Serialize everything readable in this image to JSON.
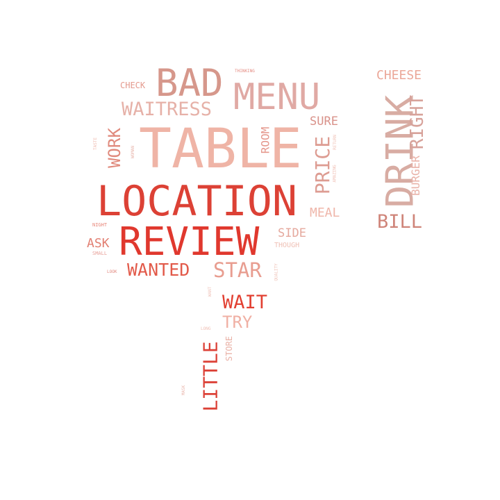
{
  "words": [
    {
      "id": "table",
      "text": "TABLE",
      "color": "#efb4a6"
    },
    {
      "id": "location",
      "text": "LOCATION",
      "color": "#dc4135"
    },
    {
      "id": "review",
      "text": "REVIEW",
      "color": "#e0382e"
    },
    {
      "id": "bad",
      "text": "BAD",
      "color": "#d6978b"
    },
    {
      "id": "menu",
      "text": "MENU",
      "color": "#e0a9a4"
    },
    {
      "id": "drink",
      "text": "DRINK",
      "color": "#d8aca3"
    },
    {
      "id": "right",
      "text": "RIGHT",
      "color": "#d7a29a"
    },
    {
      "id": "waitress",
      "text": "WAITRESS",
      "color": "#e6b1a8"
    },
    {
      "id": "wanted",
      "text": "WANTED",
      "color": "#e25a4a"
    },
    {
      "id": "star",
      "text": "STAR",
      "color": "#e89d90"
    },
    {
      "id": "wait",
      "text": "WAIT",
      "color": "#e24032"
    },
    {
      "id": "try",
      "text": "TRY",
      "color": "#f0b0a4"
    },
    {
      "id": "little",
      "text": "LITTLE",
      "color": "#dc4238"
    },
    {
      "id": "price",
      "text": "PRICE",
      "color": "#dd9c92"
    },
    {
      "id": "work",
      "text": "WORK",
      "color": "#e08a7d"
    },
    {
      "id": "bill",
      "text": "BILL",
      "color": "#cf8479"
    },
    {
      "id": "cheese",
      "text": "CHEESE",
      "color": "#eba798"
    },
    {
      "id": "burger",
      "text": "BURGER",
      "color": "#e9b2a8"
    },
    {
      "id": "meal",
      "text": "MEAL",
      "color": "#efb6aa"
    },
    {
      "id": "sure",
      "text": "SURE",
      "color": "#d9928a"
    },
    {
      "id": "side",
      "text": "SIDE",
      "color": "#e5a89d"
    },
    {
      "id": "ask",
      "text": "ASK",
      "color": "#e27f72"
    },
    {
      "id": "room",
      "text": "ROOM",
      "color": "#e5998e"
    },
    {
      "id": "check",
      "text": "CHECK",
      "color": "#e49a8e"
    },
    {
      "id": "though",
      "text": "THOUGH",
      "color": "#efc0b5"
    },
    {
      "id": "store",
      "text": "STORE",
      "color": "#e9b0a5"
    },
    {
      "id": "thinking",
      "text": "THINKING",
      "color": "#e48a80"
    },
    {
      "id": "night",
      "text": "NIGHT",
      "color": "#e8877a"
    },
    {
      "id": "small",
      "text": "SMALL",
      "color": "#e8a19a"
    },
    {
      "id": "quality",
      "text": "QUALITY",
      "color": "#efc3b8"
    },
    {
      "id": "amazing",
      "text": "AMAZING",
      "color": "#f0c0b6"
    },
    {
      "id": "return",
      "text": "RETURN",
      "color": "#f0c4ba"
    },
    {
      "id": "woman",
      "text": "WOMAN",
      "color": "#e8b6ac"
    },
    {
      "id": "taste",
      "text": "TASTE",
      "color": "#efbbb0"
    },
    {
      "id": "look",
      "text": "LOOK",
      "color": "#e28a80"
    },
    {
      "id": "want",
      "text": "WANT",
      "color": "#f0c6bd"
    },
    {
      "id": "long",
      "text": "LONG",
      "color": "#f0c0b6"
    },
    {
      "id": "mask",
      "text": "MASK",
      "color": "#eab8af"
    }
  ]
}
